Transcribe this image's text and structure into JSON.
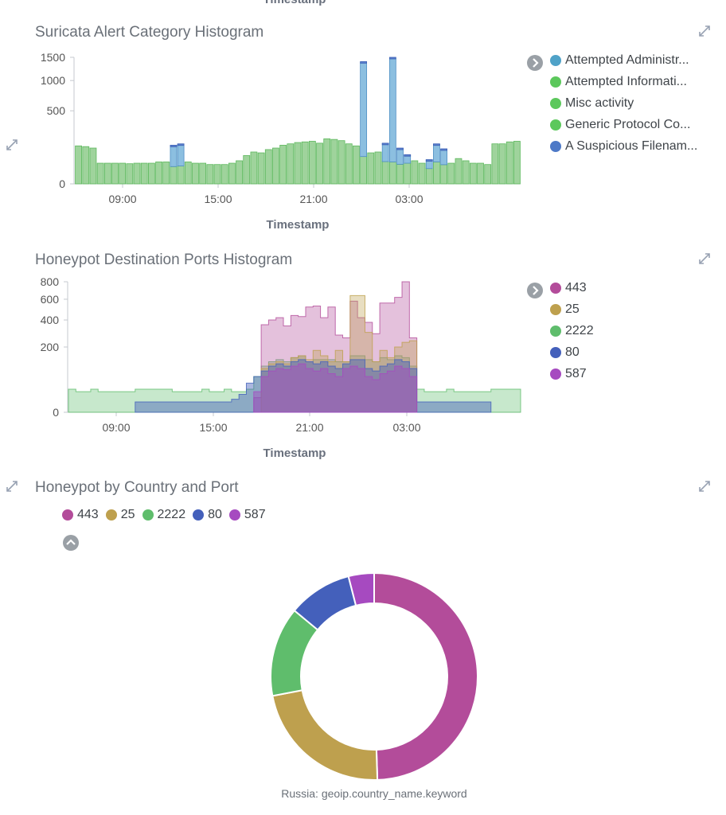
{
  "top_axis_title": "Timestamp",
  "panels": {
    "suricata": {
      "title": "Suricata Alert Category Histogram",
      "xtitle": "Timestamp",
      "legend": [
        {
          "label": "Attempted Administr...",
          "color": "#4fa2c8"
        },
        {
          "label": "Attempted Informati...",
          "color": "#5cc85c"
        },
        {
          "label": "Misc activity",
          "color": "#5cc85c"
        },
        {
          "label": "Generic Protocol Co...",
          "color": "#5cc85c"
        },
        {
          "label": "A Suspicious Filenam...",
          "color": "#4d79c7"
        }
      ]
    },
    "ports": {
      "title": "Honeypot Destination Ports Histogram",
      "xtitle": "Timestamp",
      "legend": [
        {
          "label": "443",
          "color": "#b34c9a"
        },
        {
          "label": "25",
          "color": "#bea04e"
        },
        {
          "label": "2222",
          "color": "#5fbd6c"
        },
        {
          "label": "80",
          "color": "#4460bb"
        },
        {
          "label": "587",
          "color": "#a64ac0"
        }
      ]
    },
    "country": {
      "title": "Honeypot by Country and Port",
      "legend": [
        {
          "label": "443",
          "color": "#b34c9a"
        },
        {
          "label": "25",
          "color": "#bea04e"
        },
        {
          "label": "2222",
          "color": "#5fbd6c"
        },
        {
          "label": "80",
          "color": "#4460bb"
        },
        {
          "label": "587",
          "color": "#a64ac0"
        }
      ],
      "pie_label": "Russia: geoip.country_name.keyword"
    }
  },
  "chart_data": [
    {
      "type": "bar",
      "title": "Suricata Alert Category Histogram",
      "xlabel": "Timestamp",
      "ylabel": "",
      "y_ticks": [
        0,
        500,
        1000,
        1500
      ],
      "y_scale": "sqrt",
      "x_ticks": [
        "09:00",
        "15:00",
        "21:00",
        "03:00"
      ],
      "legend_position": "right",
      "series_names": [
        "Attempted Administr...",
        "Attempted Informati...",
        "Misc activity",
        "Generic Protocol Co...",
        "A Suspicious Filenam..."
      ],
      "stacked_totals": [
        135,
        130,
        120,
        40,
        40,
        40,
        40,
        38,
        40,
        40,
        40,
        45,
        45,
        140,
        150,
        45,
        40,
        40,
        35,
        35,
        35,
        40,
        50,
        75,
        95,
        90,
        110,
        120,
        140,
        150,
        160,
        165,
        170,
        155,
        190,
        185,
        175,
        150,
        135,
        1400,
        90,
        95,
        155,
        1500,
        120,
        80,
        50,
        40,
        55,
        150,
        115,
        40,
        60,
        50,
        40,
        40,
        35,
        150,
        150,
        165,
        170
      ],
      "blue_share": [
        0,
        0,
        0,
        0,
        0,
        0,
        0,
        0,
        0,
        0,
        0,
        0,
        0,
        0.8,
        0.8,
        0,
        0,
        0,
        0,
        0,
        0,
        0,
        0,
        0,
        0,
        0,
        0,
        0,
        0,
        0,
        0,
        0,
        0,
        0,
        0,
        0,
        0,
        0,
        0,
        0.95,
        0,
        0,
        0.7,
        0.97,
        0.7,
        0.5,
        0,
        0,
        0.6,
        0.7,
        0.7,
        0,
        0,
        0,
        0,
        0,
        0,
        0,
        0,
        0,
        0
      ]
    },
    {
      "type": "area",
      "title": "Honeypot Destination Ports Histogram",
      "xlabel": "Timestamp",
      "y_ticks": [
        0,
        200,
        400,
        600,
        800
      ],
      "y_scale": "sqrt",
      "x_ticks": [
        "09:00",
        "15:00",
        "21:00",
        "03:00"
      ],
      "legend_position": "right",
      "series": [
        {
          "name": "443",
          "values": [
            0,
            0,
            0,
            0,
            0,
            0,
            0,
            0,
            0,
            0,
            0,
            0,
            0,
            0,
            0,
            0,
            0,
            0,
            0,
            0,
            0,
            0,
            0,
            0,
            0,
            10,
            360,
            400,
            420,
            350,
            440,
            430,
            520,
            530,
            420,
            520,
            280,
            260,
            580,
            420,
            380,
            290,
            560,
            560,
            620,
            800,
            260,
            0,
            0,
            0,
            0,
            0,
            0,
            0,
            0,
            0,
            0,
            0,
            0,
            0,
            0
          ]
        },
        {
          "name": "25",
          "values": [
            0,
            0,
            0,
            0,
            0,
            0,
            0,
            0,
            0,
            0,
            0,
            0,
            0,
            0,
            0,
            0,
            0,
            0,
            0,
            0,
            0,
            0,
            0,
            0,
            0,
            0,
            90,
            110,
            120,
            110,
            140,
            150,
            130,
            180,
            150,
            120,
            180,
            120,
            640,
            640,
            300,
            120,
            180,
            140,
            200,
            230,
            240,
            0,
            0,
            0,
            0,
            0,
            0,
            0,
            0,
            0,
            0,
            0,
            0,
            0,
            0
          ]
        },
        {
          "name": "2222",
          "values": [
            25,
            20,
            20,
            25,
            20,
            20,
            20,
            20,
            20,
            25,
            25,
            25,
            25,
            25,
            20,
            20,
            20,
            20,
            25,
            20,
            20,
            25,
            20,
            20,
            25,
            60,
            100,
            120,
            130,
            120,
            140,
            150,
            120,
            130,
            130,
            130,
            120,
            120,
            150,
            150,
            130,
            120,
            140,
            130,
            150,
            140,
            100,
            25,
            20,
            20,
            20,
            25,
            20,
            20,
            20,
            20,
            20,
            25,
            25,
            25,
            25
          ]
        },
        {
          "name": "80",
          "values": [
            0,
            0,
            0,
            0,
            0,
            0,
            0,
            0,
            0,
            5,
            5,
            5,
            5,
            5,
            5,
            5,
            5,
            5,
            5,
            5,
            5,
            5,
            8,
            15,
            40,
            60,
            80,
            100,
            110,
            100,
            120,
            130,
            120,
            110,
            120,
            100,
            90,
            110,
            130,
            130,
            90,
            80,
            100,
            110,
            130,
            120,
            90,
            5,
            5,
            5,
            5,
            5,
            5,
            5,
            5,
            5,
            5,
            0,
            0,
            0,
            0
          ]
        },
        {
          "name": "587",
          "values": [
            0,
            0,
            0,
            0,
            0,
            0,
            0,
            0,
            0,
            0,
            0,
            0,
            0,
            0,
            0,
            0,
            0,
            0,
            0,
            0,
            0,
            0,
            0,
            0,
            0,
            20,
            60,
            80,
            90,
            85,
            100,
            110,
            90,
            80,
            90,
            70,
            60,
            90,
            100,
            90,
            60,
            50,
            70,
            80,
            100,
            90,
            60,
            0,
            0,
            0,
            0,
            0,
            0,
            0,
            0,
            0,
            0,
            0,
            0,
            0,
            0
          ]
        }
      ]
    },
    {
      "type": "pie",
      "title": "Honeypot by Country and Port",
      "donut": true,
      "legend_position": "top",
      "categories": [
        "443",
        "25",
        "2222",
        "80",
        "587"
      ],
      "values": [
        49.5,
        22.5,
        14,
        10,
        4
      ],
      "colors": [
        "#b34c9a",
        "#bea04e",
        "#5fbd6c",
        "#4460bb",
        "#a64ac0"
      ],
      "caption": "Russia: geoip.country_name.keyword"
    }
  ]
}
